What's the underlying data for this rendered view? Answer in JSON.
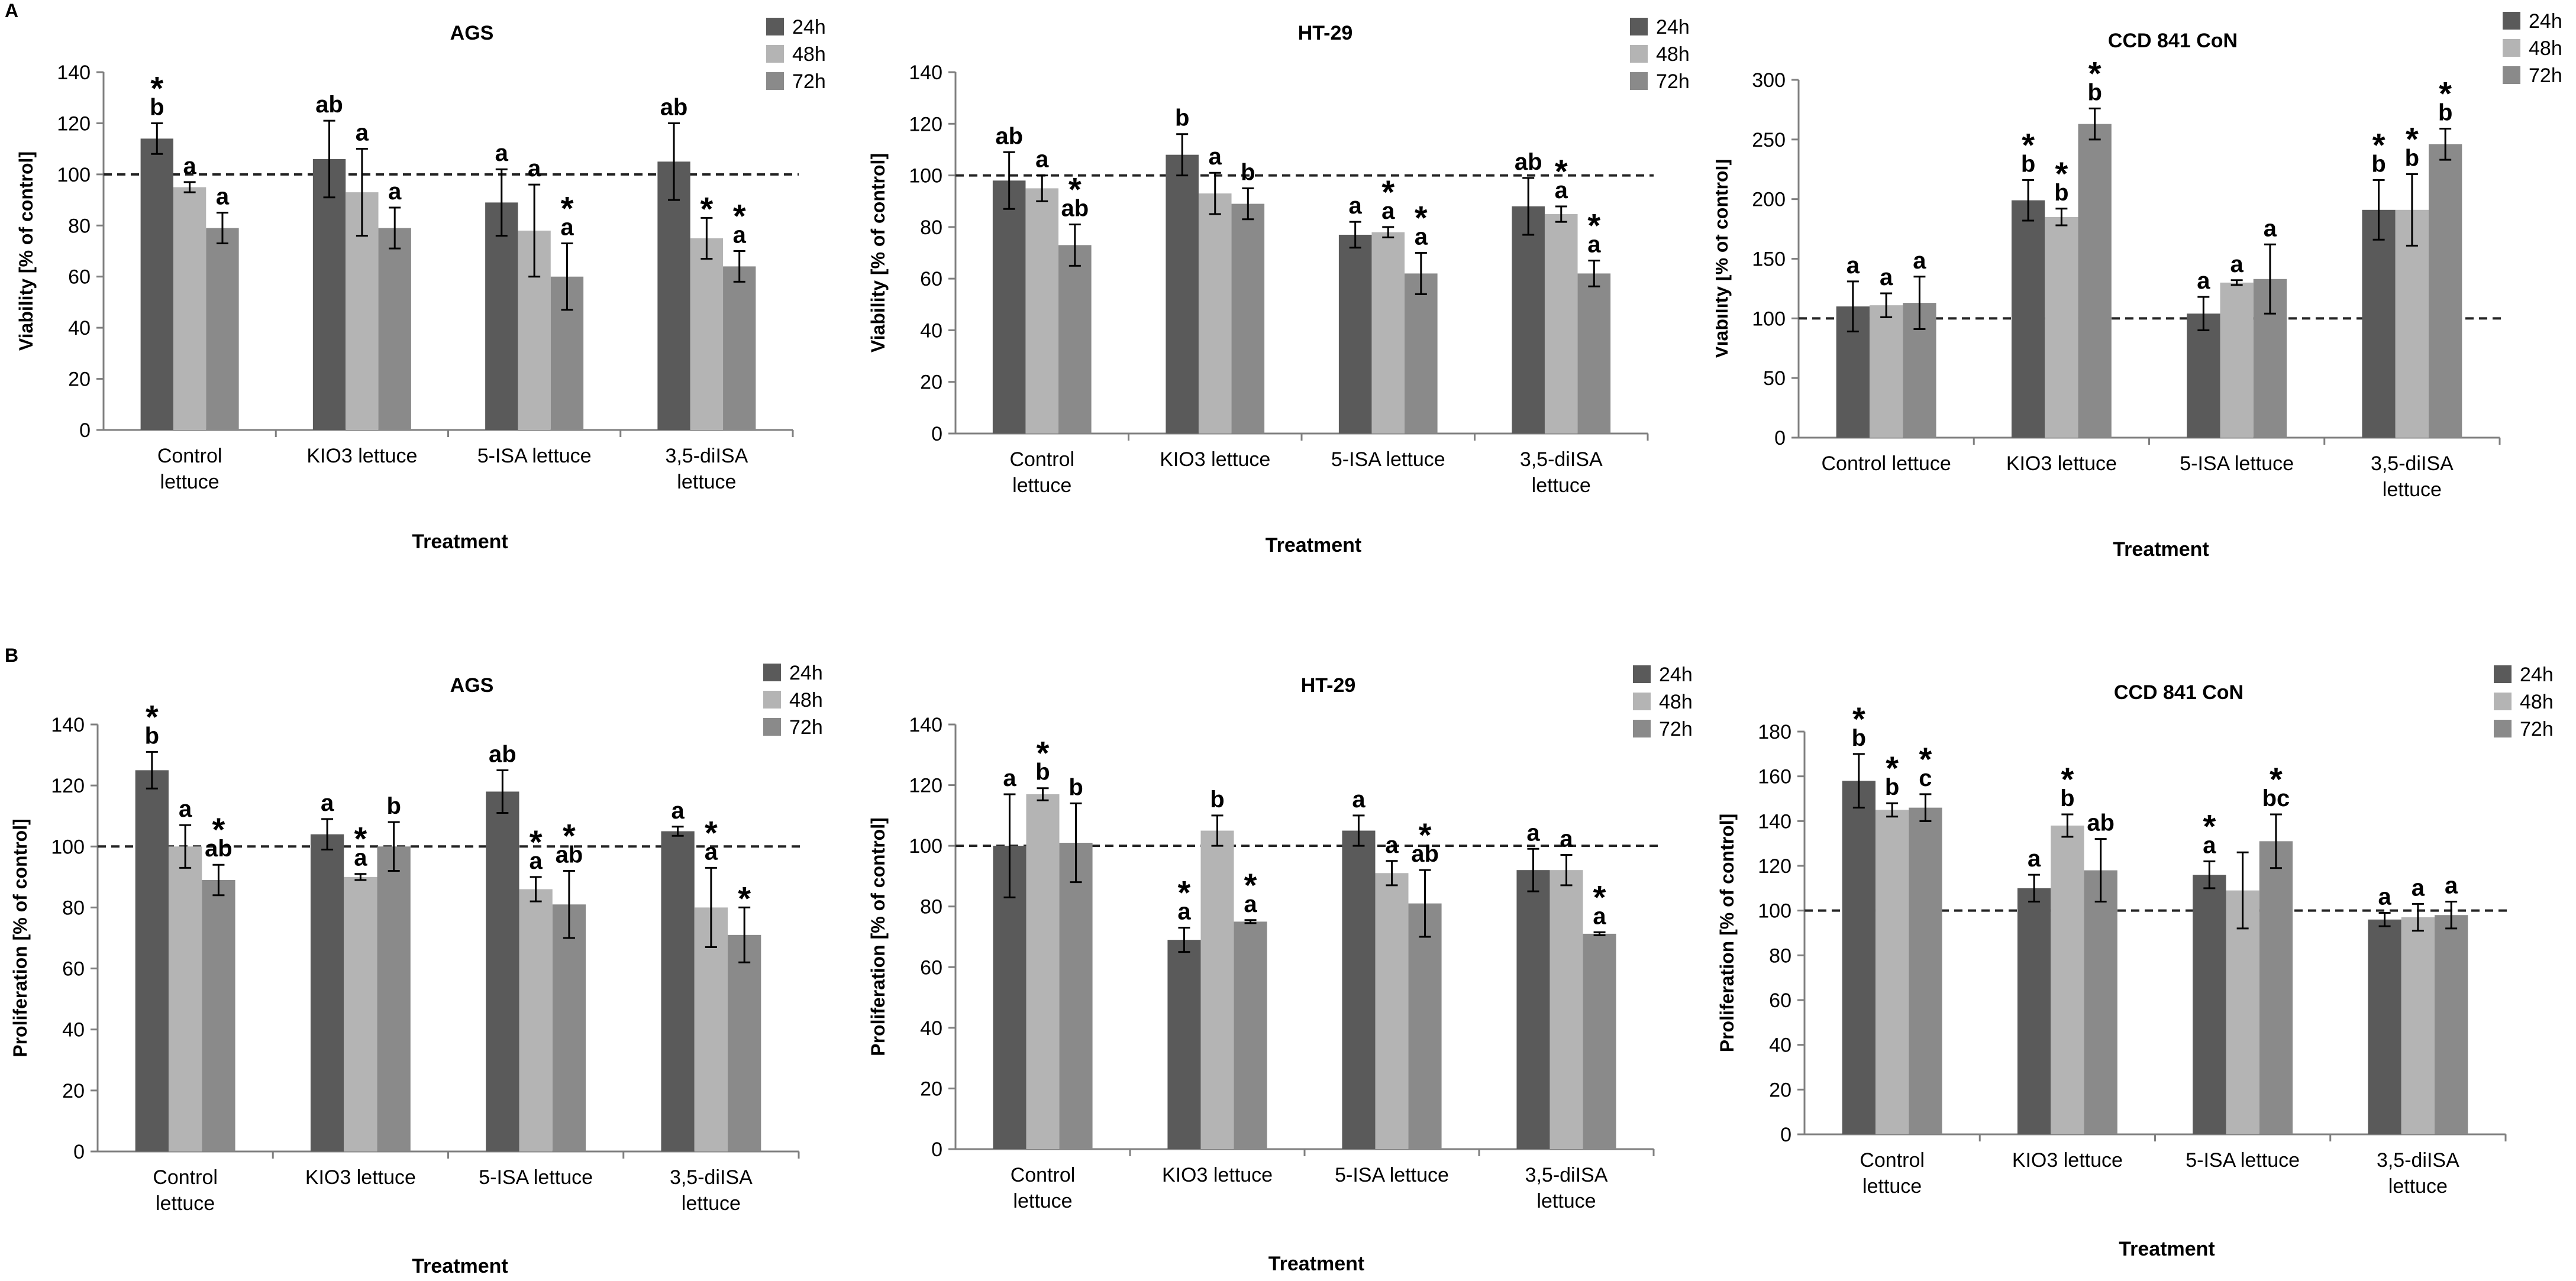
{
  "figure": {
    "panel_labels": [
      "A",
      "B"
    ]
  },
  "colors": {
    "s24": "#5a5a5a",
    "s48": "#b4b4b4",
    "s72": "#8a8a8a",
    "axis": "#7f7f7f",
    "text": "#000000"
  },
  "chart_data": [
    {
      "type": "bar",
      "panel": "A",
      "title": "AGS",
      "xlabel": "Treatment",
      "ylabel": "Viability [% of control]",
      "categories": [
        "Control\nlettuce",
        "KIO3 lettuce",
        "5-ISA lettuce",
        "3,5-diISA\nlettuce"
      ],
      "ylim": [
        0,
        140
      ],
      "yticks": [
        0,
        20,
        40,
        60,
        80,
        100,
        120,
        140
      ],
      "reference_line": 100,
      "series": [
        {
          "name": "24h",
          "values": [
            114,
            106,
            89,
            105
          ],
          "errors": [
            6,
            15,
            13,
            15
          ],
          "labels": [
            "*\nb",
            "ab",
            "a",
            "ab"
          ]
        },
        {
          "name": "48h",
          "values": [
            95,
            93,
            78,
            75
          ],
          "errors": [
            2,
            17,
            18,
            8
          ],
          "labels": [
            "a",
            "a",
            "a",
            "*"
          ]
        },
        {
          "name": "72h",
          "values": [
            79,
            79,
            60,
            64
          ],
          "errors": [
            6,
            8,
            13,
            6
          ],
          "labels": [
            "a",
            "a",
            "*\na",
            "*\na"
          ]
        }
      ]
    },
    {
      "type": "bar",
      "panel": "A",
      "title": "HT-29",
      "xlabel": "Treatment",
      "ylabel": "Viability [% of control]",
      "categories": [
        "Control\nlettuce",
        "KIO3 lettuce",
        "5-ISA lettuce",
        "3,5-diISA\nlettuce"
      ],
      "ylim": [
        0,
        140
      ],
      "yticks": [
        0,
        20,
        40,
        60,
        80,
        100,
        120,
        140
      ],
      "reference_line": 100,
      "series": [
        {
          "name": "24h",
          "values": [
            98,
            108,
            77,
            88
          ],
          "errors": [
            11,
            8,
            5,
            11
          ],
          "labels": [
            "ab",
            "b",
            "a",
            "ab"
          ]
        },
        {
          "name": "48h",
          "values": [
            95,
            93,
            78,
            85
          ],
          "errors": [
            5,
            8,
            2,
            3
          ],
          "labels": [
            "a",
            "a",
            "*\na",
            "*\na"
          ]
        },
        {
          "name": "72h",
          "values": [
            73,
            89,
            62,
            62
          ],
          "errors": [
            8,
            6,
            8,
            5
          ],
          "labels": [
            "*\nab",
            "b",
            "*\na",
            "*\na"
          ]
        }
      ]
    },
    {
      "type": "bar",
      "panel": "A",
      "title": "CCD 841 CoN",
      "xlabel": "Treatment",
      "ylabel": "Viability [% of control]",
      "categories": [
        "Control lettuce",
        "KIO3 lettuce",
        "5-ISA lettuce",
        "3,5-diISA\nlettuce"
      ],
      "ylim": [
        0,
        300
      ],
      "yticks": [
        0,
        50,
        100,
        150,
        200,
        250,
        300
      ],
      "reference_line": 100,
      "series": [
        {
          "name": "24h",
          "values": [
            110,
            199,
            104,
            191
          ],
          "errors": [
            21,
            17,
            14,
            25
          ],
          "labels": [
            "a",
            "*\nb",
            "a",
            "*\nb"
          ]
        },
        {
          "name": "48h",
          "values": [
            111,
            185,
            130,
            191
          ],
          "errors": [
            10,
            7,
            2,
            30
          ],
          "labels": [
            "a",
            "*\nb",
            "a",
            "*\nb"
          ]
        },
        {
          "name": "72h",
          "values": [
            113,
            263,
            133,
            246
          ],
          "errors": [
            22,
            13,
            29,
            13
          ],
          "labels": [
            "a",
            "*\nb",
            "a",
            "*\nb"
          ]
        }
      ]
    },
    {
      "type": "bar",
      "panel": "B",
      "title": "AGS",
      "xlabel": "Treatment",
      "ylabel": "Proliferation [% of control]",
      "categories": [
        "Control\nlettuce",
        "KIO3 lettuce",
        "5-ISA lettuce",
        "3,5-diISA\nlettuce"
      ],
      "ylim": [
        0,
        140
      ],
      "yticks": [
        0,
        20,
        40,
        60,
        80,
        100,
        120,
        140
      ],
      "reference_line": 100,
      "series": [
        {
          "name": "24h",
          "values": [
            125,
            104,
            118,
            105
          ],
          "errors": [
            6,
            5,
            7,
            1.5
          ],
          "labels": [
            "*\nb",
            "a",
            "ab",
            "a"
          ]
        },
        {
          "name": "48h",
          "values": [
            100,
            90,
            86,
            80
          ],
          "errors": [
            7,
            1,
            4,
            13
          ],
          "labels": [
            "a",
            "*\na",
            "*\na",
            "*\na"
          ]
        },
        {
          "name": "72h",
          "values": [
            89,
            100,
            81,
            71
          ],
          "errors": [
            5,
            8,
            11,
            9
          ],
          "labels": [
            "*\nab",
            "b",
            "*\nab",
            "*"
          ]
        }
      ]
    },
    {
      "type": "bar",
      "panel": "B",
      "title": "HT-29",
      "xlabel": "Treatment",
      "ylabel": "Proliferation [% of control]",
      "categories": [
        "Control\nlettuce",
        "KIO3 lettuce",
        "5-ISA lettuce",
        "3,5-diISA\nlettuce"
      ],
      "ylim": [
        0,
        140
      ],
      "yticks": [
        0,
        20,
        40,
        60,
        80,
        100,
        120,
        140
      ],
      "reference_line": 100,
      "series": [
        {
          "name": "24h",
          "values": [
            100,
            69,
            105,
            92
          ],
          "errors": [
            17,
            4,
            5,
            7
          ],
          "labels": [
            "a",
            "*\na",
            "a",
            "a"
          ]
        },
        {
          "name": "48h",
          "values": [
            117,
            105,
            91,
            92
          ],
          "errors": [
            2,
            5,
            4,
            5
          ],
          "labels": [
            "*\nb",
            "b",
            "a",
            "a"
          ]
        },
        {
          "name": "72h",
          "values": [
            101,
            75,
            81,
            71
          ],
          "errors": [
            13,
            0.5,
            11,
            0.5
          ],
          "labels": [
            "b",
            "*\na",
            "*\nab",
            "*\na"
          ]
        }
      ]
    },
    {
      "type": "bar",
      "panel": "B",
      "title": "CCD 841 CoN",
      "xlabel": "Treatment",
      "ylabel": "Proliferation [% of control]",
      "categories": [
        "Control\nlettuce",
        "KIO3 lettuce",
        "5-ISA lettuce",
        "3,5-diISA\nlettuce"
      ],
      "ylim": [
        0,
        180
      ],
      "yticks": [
        0,
        20,
        40,
        60,
        80,
        100,
        120,
        140,
        160,
        180
      ],
      "reference_line": 100,
      "series": [
        {
          "name": "24h",
          "values": [
            158,
            110,
            116,
            96
          ],
          "errors": [
            12,
            6,
            6,
            3
          ],
          "labels": [
            "*\nb",
            "a",
            "*\na",
            "a"
          ]
        },
        {
          "name": "48h",
          "values": [
            145,
            138,
            109,
            97
          ],
          "errors": [
            3,
            5,
            17,
            6
          ],
          "labels": [
            "*\nb",
            "*\nb",
            "",
            "a"
          ]
        },
        {
          "name": "72h",
          "values": [
            146,
            118,
            131,
            98
          ],
          "errors": [
            6,
            14,
            12,
            6
          ],
          "labels": [
            "*\nc",
            "ab",
            "*\nbc",
            "a"
          ]
        }
      ]
    }
  ]
}
